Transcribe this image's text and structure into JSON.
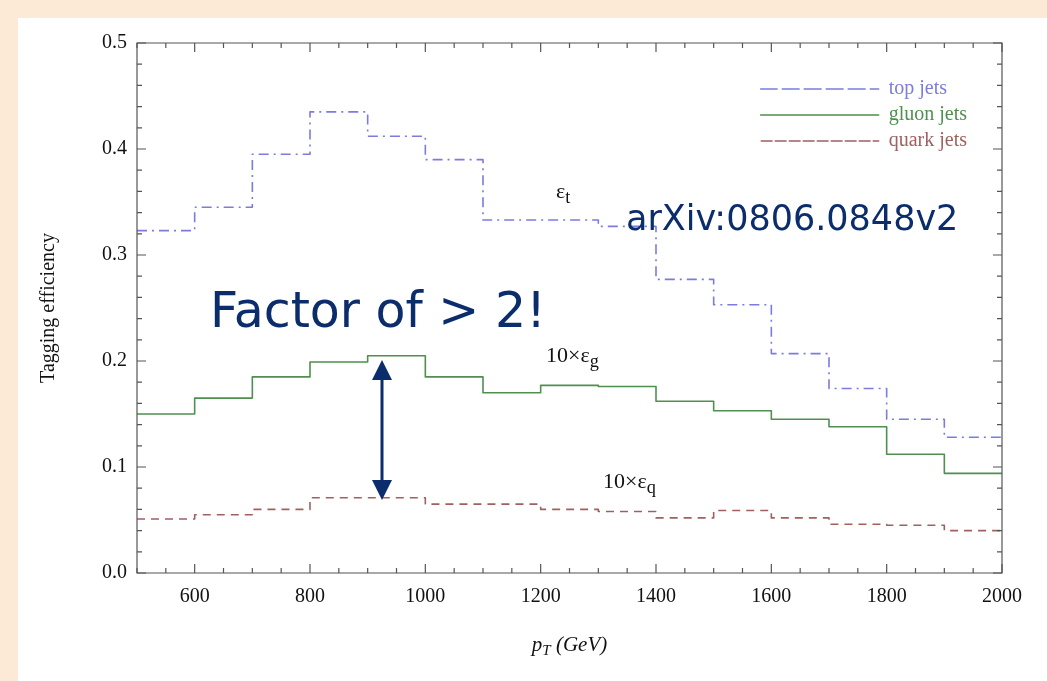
{
  "chart_data": {
    "type": "histogram",
    "xlabel": "p$_{T}$ (GeV)",
    "ylabel": "Tagging efficiency",
    "bins": [
      500,
      600,
      700,
      800,
      900,
      1000,
      1100,
      1200,
      1300,
      1400,
      1500,
      1600,
      1700,
      1800,
      1900,
      2000
    ],
    "series": [
      {
        "name": "top jets",
        "color": "#7b7be0",
        "line_style": "dotted",
        "values": [
          0.323,
          0.345,
          0.395,
          0.435,
          0.412,
          0.39,
          0.333,
          0.333,
          0.327,
          0.277,
          0.253,
          0.207,
          0.174,
          0.145,
          0.128
        ]
      },
      {
        "name": "gluon jets",
        "color": "#4f8f4f",
        "line_style": "solid",
        "values": [
          0.15,
          0.165,
          0.185,
          0.199,
          0.205,
          0.185,
          0.17,
          0.177,
          0.176,
          0.162,
          0.153,
          0.145,
          0.138,
          0.112,
          0.094
        ]
      },
      {
        "name": "quark jets",
        "color": "#a06060",
        "line_style": "dashed",
        "values": [
          0.051,
          0.055,
          0.06,
          0.071,
          0.071,
          0.065,
          0.065,
          0.06,
          0.058,
          0.052,
          0.059,
          0.052,
          0.046,
          0.045,
          0.04
        ]
      }
    ],
    "xlim": [
      500,
      2000
    ],
    "xticks": [
      {
        "value": 500,
        "label": null
      },
      {
        "value": 550,
        "label": null
      },
      600,
      {
        "value": 650,
        "label": null
      },
      {
        "value": 700,
        "label": null
      },
      {
        "value": 750,
        "label": null
      },
      800,
      {
        "value": 850,
        "label": null
      },
      {
        "value": 900,
        "label": null
      },
      {
        "value": 950,
        "label": null
      },
      1000,
      {
        "value": 1050,
        "label": null
      },
      {
        "value": 1100,
        "label": null
      },
      {
        "value": 1150,
        "label": null
      },
      1200,
      {
        "value": 1250,
        "label": null
      },
      {
        "value": 1300,
        "label": null
      },
      {
        "value": 1350,
        "label": null
      },
      1400,
      {
        "value": 1450,
        "label": null
      },
      {
        "value": 1500,
        "label": null
      },
      {
        "value": 1550,
        "label": null
      },
      1600,
      {
        "value": 1650,
        "label": null
      },
      {
        "value": 1700,
        "label": null
      },
      {
        "value": 1750,
        "label": null
      },
      1800,
      {
        "value": 1850,
        "label": null
      },
      {
        "value": 1900,
        "label": null
      },
      {
        "value": 1950,
        "label": null
      },
      2000
    ],
    "ylim": [
      0,
      0.5
    ],
    "yticks": [
      {
        "value": 0,
        "label": "0.0"
      },
      {
        "value": 0.02,
        "label": null
      },
      {
        "value": 0.04,
        "label": null
      },
      {
        "value": 0.06,
        "label": null
      },
      {
        "value": 0.08,
        "label": null
      },
      0.1,
      {
        "value": 0.12,
        "label": null
      },
      {
        "value": 0.14,
        "label": null
      },
      {
        "value": 0.16,
        "label": null
      },
      {
        "value": 0.18,
        "label": null
      },
      0.2,
      {
        "value": 0.22,
        "label": null
      },
      {
        "value": 0.24,
        "label": null
      },
      {
        "value": 0.26,
        "label": null
      },
      {
        "value": 0.28,
        "label": null
      },
      0.3,
      {
        "value": 0.32,
        "label": null
      },
      {
        "value": 0.34,
        "label": null
      },
      {
        "value": 0.36,
        "label": null
      },
      {
        "value": 0.38,
        "label": null
      },
      0.4,
      {
        "value": 0.42,
        "label": null
      },
      {
        "value": 0.44,
        "label": null
      },
      {
        "value": 0.46,
        "label": null
      },
      {
        "value": 0.48,
        "label": null
      },
      0.5
    ],
    "grid": false,
    "legend": "top right",
    "marker": "none",
    "annotations": [
      "ε$_{t}$",
      "10×ε$_{g}$",
      "10×ε$_{q}$",
      "Factor of > 2!",
      "arXiv:0806.0848v2"
    ]
  }
}
